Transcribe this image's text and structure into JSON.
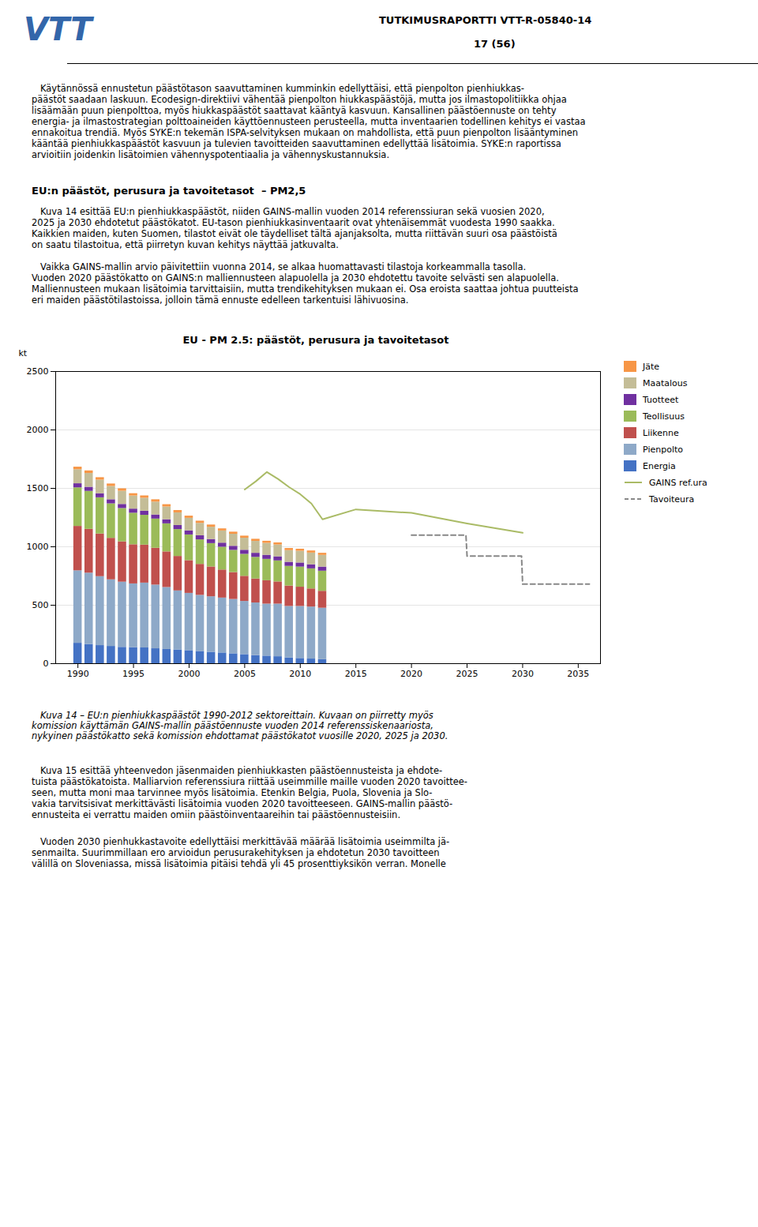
{
  "header_report": "TUTKIMUSRAPORTTI VTT-R-05840-14",
  "header_page": "17 (56)",
  "logo": "VTT",
  "para1_lines": [
    "   Käytännössä ennustetun päästötason saavuttaminen kumminkin edellyttäisi, että pienpolton pienhiukkas-",
    "päästöt saadaan laskuun. Ecodesign-direktiivi vähentää pienpolton hiukkaspäästöjä, mutta jos ilmastopolitiikka ohjaa",
    "lisäämään puun pienpolttoa, myös hiukkaspäästöt saattavat kääntyä kasvuun. Kansallinen päästöennuste on tehty",
    "energia- ja ilmastostrategian polttoaineiden käyttöennusteen perusteella, mutta inventaarien todellinen kehitys ei vastaa",
    "ennakoitua trendiä. Myös SYKE:n tekemän ISPA-selvityksen mukaan on mahdollista, että puun pienpolton lisääntyminen",
    "kääntää pienhiukkaspäästöt kasvuun ja tulevien tavoitteiden saavuttaminen edellyttää lisätoimia. SYKE:n raportissa",
    "arvioitiin joidenkin lisätoimien vähennyspotentiaalia ja vähennyskustannuksia."
  ],
  "section_title": "EU:n päästöt, perusura ja tavoitetasot  – PM2,5",
  "para2_lines": [
    "   Kuva 14 esittää EU:n pienhiukkaspäästöt, niiden GAINS-mallin vuoden 2014 referenssiuran sekä vuosien 2020,",
    "2025 ja 2030 ehdotetut päästökatot. EU-tason pienhiukkasinventaarit ovat yhtenäisemmät vuodesta 1990 saakka.",
    "Kaikkien maiden, kuten Suomen, tilastot eivät ole täydelliset tältä ajanjaksolta, mutta riittävän suuri osa päästöistä",
    "on saatu tilastoitua, että piirretyn kuvan kehitys näyttää jatkuvalta."
  ],
  "para3_lines": [
    "   Vaikka GAINS-mallin arvio päivitettiin vuonna 2014, se alkaa huomattavasti tilastoja korkeammalla tasolla.",
    "Vuoden 2020 päästökatto on GAINS:n malliennusteen alapuolella ja 2030 ehdotettu tavoite selvästi sen alapuolella.",
    "Malliennusteen mukaan lisätoimia tarvittaisiin, mutta trendikehityksen mukaan ei. Osa eroista saattaa johtua puutteista",
    "eri maiden päästötilastoissa, jolloin tämä ennuste edelleen tarkentuisi lähivuosina."
  ],
  "caption_lines": [
    "   Kuva 14 – EU:n pienhiukkaspäästöt 1990-2012 sektoreittain. Kuvaan on piirretty myös",
    "komission käyttämän GAINS-mallin päästöennuste vuoden 2014 referenssiskenaariosta,",
    "nykyinen päästökatto sekä komission ehdottamat päästökatot vuosille 2020, 2025 ja 2030."
  ],
  "para4_lines": [
    "   Kuva 15 esittää yhteenvedon jäsenmaiden pienhiukkasten päästöennusteista ja ehdote-",
    "tuista päästökatoista. Malliarvion referenssiura riittää useimmille maille vuoden 2020 tavoittee-",
    "seen, mutta moni maa tarvinnee myös lisätoimia. Etenkin Belgia, Puola, Slovenia ja Slo-",
    "vakia tarvitsisivat merkittävästi lisätoimia vuoden 2020 tavoitteeseen. GAINS-mallin päästö-",
    "ennusteita ei verrattu maiden omiin päästöinventaareihin tai päästöennusteisiin."
  ],
  "para5_lines": [
    "   Vuoden 2030 pienhukkastavoite edellyttäisi merkittävää määrää lisätoimia useimmilta jä-",
    "senmailta. Suurimmillaan ero arvioidun perusurakehityksen ja ehdotetun 2030 tavoitteen",
    "välillä on Sloveniassa, missä lisätoimia pitäisi tehdä yli 45 prosenttiyksikön verran. Monelle"
  ],
  "chart_data": {
    "type": "bar",
    "stacked": true,
    "title": "EU - PM 2.5: päästöt, perusura ja tavoitetasot",
    "ylabel": "kt",
    "x": [
      1990,
      1991,
      1992,
      1993,
      1994,
      1995,
      1996,
      1997,
      1998,
      1999,
      2000,
      2001,
      2002,
      2003,
      2004,
      2005,
      2006,
      2007,
      2008,
      2009,
      2010,
      2011,
      2012
    ],
    "series": [
      {
        "name": "Energia",
        "color": "#4472C4",
        "values": [
          175,
          165,
          155,
          148,
          140,
          138,
          135,
          128,
          122,
          118,
          112,
          105,
          98,
          92,
          85,
          78,
          70,
          65,
          60,
          50,
          45,
          40,
          35
        ]
      },
      {
        "name": "Pienpolto",
        "color": "#8EA9C8",
        "values": [
          620,
          610,
          590,
          570,
          558,
          545,
          555,
          545,
          530,
          505,
          490,
          480,
          475,
          470,
          465,
          455,
          450,
          445,
          450,
          440,
          445,
          445,
          440
        ]
      },
      {
        "name": "Liikenne",
        "color": "#C0504D",
        "values": [
          380,
          375,
          365,
          355,
          345,
          335,
          325,
          315,
          305,
          295,
          280,
          265,
          255,
          240,
          230,
          215,
          205,
          200,
          190,
          175,
          165,
          155,
          145
        ]
      },
      {
        "name": "Teollisuus",
        "color": "#9BBB59",
        "values": [
          330,
          325,
          310,
          295,
          285,
          270,
          255,
          250,
          240,
          230,
          220,
          210,
          200,
          195,
          190,
          188,
          185,
          183,
          180,
          168,
          172,
          172,
          172
        ]
      },
      {
        "name": "Tuotteet",
        "color": "#7030A0",
        "values": [
          35,
          35,
          35,
          35,
          35,
          35,
          35,
          35,
          35,
          35,
          35,
          35,
          35,
          35,
          35,
          35,
          35,
          35,
          35,
          35,
          35,
          35,
          35
        ]
      },
      {
        "name": "Maatalous",
        "color": "#C4BD97",
        "values": [
          120,
          118,
          116,
          114,
          113,
          112,
          111,
          110,
          109,
          108,
          107,
          106,
          105,
          104,
          103,
          103,
          102,
          102,
          101,
          100,
          100,
          100,
          100
        ]
      },
      {
        "name": "Jäte",
        "color": "#F79646",
        "values": [
          22,
          22,
          21,
          21,
          21,
          20,
          20,
          20,
          20,
          20,
          19,
          19,
          19,
          18,
          18,
          18,
          18,
          18,
          18,
          18,
          18,
          18,
          18
        ]
      },
      {
        "name": "GAINS ref.ura",
        "type": "line",
        "color": "#AABB66",
        "line_style": "solid",
        "x": [
          2005,
          2006,
          2007,
          2008,
          2009,
          2010,
          2011,
          2012,
          2015,
          2020,
          2025,
          2030
        ],
        "values": [
          1490,
          1560,
          1640,
          1580,
          1510,
          1450,
          1370,
          1235,
          1320,
          1290,
          1200,
          1120
        ]
      },
      {
        "name": "Tavoiteura",
        "type": "line",
        "color": "#888888",
        "line_style": "dashed",
        "x": [
          2020,
          2024.9,
          2025,
          2029.9,
          2030,
          2036
        ],
        "values": [
          1100,
          1100,
          920,
          920,
          680,
          680
        ]
      }
    ],
    "xlim": [
      1988,
      2037
    ],
    "ylim": [
      0,
      2500
    ],
    "xticks": [
      1990,
      1995,
      2000,
      2005,
      2010,
      2015,
      2020,
      2025,
      2030,
      2035
    ],
    "yticks": [
      0,
      500,
      1000,
      1500,
      2000,
      2500
    ],
    "grid": "y",
    "legend": "right"
  }
}
